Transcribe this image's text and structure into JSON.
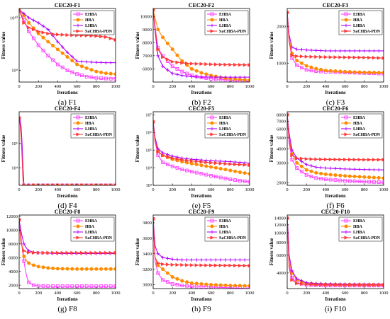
{
  "figure": {
    "y_label": "Fitness value",
    "x_label": "Iterations"
  },
  "legend_labels": [
    "EHBA",
    "HBA",
    "LHBA",
    "SaCHBA-PDN"
  ],
  "series_colors": [
    "#ff3dff",
    "#ff8c00",
    "#b000ff",
    "#ff3b3b"
  ],
  "chart_data": [
    {
      "type": "line",
      "title": "CEC20-F1",
      "caption": "(a) F1",
      "xlim": [
        0,
        1000
      ],
      "x_ticks": [
        0,
        200,
        400,
        600,
        800,
        1000
      ],
      "ylim": [
        600000000,
        15000000000
      ],
      "yscale": "log",
      "y_ticks": [
        1000000000,
        10000000000
      ],
      "y_tick_labels": [
        "10⁹",
        "10¹⁰"
      ],
      "legend": "top-right",
      "x": [
        0,
        50,
        100,
        200,
        300,
        400,
        500,
        600,
        700,
        800,
        900,
        1000
      ],
      "series": [
        {
          "name": "EHBA",
          "values": [
            14000000000,
            9000000000,
            5500000000,
            3000000000,
            1900000000,
            1300000000,
            1000000000,
            850000000,
            760000000,
            720000000,
            700000000,
            690000000
          ]
        },
        {
          "name": "HBA",
          "values": [
            14000000000,
            11000000000,
            8000000000,
            5000000000,
            3500000000,
            2500000000,
            1800000000,
            1300000000,
            1100000000,
            950000000,
            880000000,
            850000000
          ]
        },
        {
          "name": "LHBA",
          "values": [
            14000000000,
            12000000000,
            10000000000,
            8000000000,
            6000000000,
            3500000000,
            2200000000,
            1500000000,
            1450000000,
            1420000000,
            1400000000,
            1400000000
          ]
        },
        {
          "name": "SaCHBA-PDN",
          "values": [
            14000000000,
            8000000000,
            6500000000,
            5500000000,
            5000000000,
            4800000000,
            4700000000,
            4650000000,
            4600000000,
            4500000000,
            4300000000,
            3800000000
          ]
        }
      ]
    },
    {
      "type": "line",
      "title": "CEC20-F2",
      "caption": "(b) F2",
      "xlim": [
        0,
        1000
      ],
      "x_ticks": [
        0,
        200,
        400,
        600,
        800,
        1000
      ],
      "ylim": [
        5000,
        10600
      ],
      "yscale": "linear",
      "y_ticks": [
        6000,
        7000,
        8000,
        9000,
        10000
      ],
      "y_tick_labels": [
        "6000",
        "7000",
        "8000",
        "9000",
        "10000"
      ],
      "legend": "top-right",
      "x": [
        0,
        50,
        100,
        200,
        300,
        400,
        500,
        600,
        700,
        800,
        900,
        1000
      ],
      "series": [
        {
          "name": "EHBA",
          "values": [
            10500,
            7600,
            7000,
            6200,
            5800,
            5500,
            5350,
            5250,
            5200,
            5150,
            5100,
            5050
          ]
        },
        {
          "name": "HBA",
          "values": [
            10500,
            9000,
            8400,
            7500,
            6600,
            6000,
            5700,
            5500,
            5350,
            5250,
            5200,
            5150
          ]
        },
        {
          "name": "LHBA",
          "values": [
            10500,
            7000,
            6200,
            5650,
            5500,
            5400,
            5380,
            5380,
            5370,
            5370,
            5370,
            5370
          ]
        },
        {
          "name": "SaCHBA-PDN",
          "values": [
            10500,
            7500,
            6900,
            6550,
            6450,
            6400,
            6380,
            6350,
            6330,
            6320,
            6310,
            6300
          ]
        }
      ]
    },
    {
      "type": "line",
      "title": "CEC20-F3",
      "caption": "(c) F3",
      "xlim": [
        0,
        1000
      ],
      "x_ticks": [
        0,
        200,
        400,
        600,
        800,
        1000
      ],
      "ylim": [
        700,
        2800
      ],
      "yscale": "log",
      "y_ticks": [
        1000,
        2000
      ],
      "y_tick_labels": [
        "1000",
        "2000"
      ],
      "legend": "top-right",
      "x": [
        0,
        20,
        50,
        100,
        200,
        300,
        400,
        600,
        800,
        1000
      ],
      "series": [
        {
          "name": "EHBA",
          "values": [
            2600,
            1500,
            1100,
            960,
            880,
            860,
            850,
            840,
            830,
            820
          ]
        },
        {
          "name": "HBA",
          "values": [
            2600,
            1600,
            1200,
            1050,
            950,
            900,
            870,
            850,
            840,
            835
          ]
        },
        {
          "name": "LHBA",
          "values": [
            2600,
            1700,
            1350,
            1300,
            1280,
            1270,
            1260,
            1260,
            1260,
            1260
          ]
        },
        {
          "name": "SaCHBA-PDN",
          "values": [
            2600,
            1500,
            1160,
            1140,
            1130,
            1125,
            1120,
            1115,
            1110,
            1100
          ]
        }
      ]
    },
    {
      "type": "line",
      "title": "CEC20-F4",
      "caption": "(d) F4",
      "xlim": [
        0,
        1000
      ],
      "x_ticks": [
        0,
        200,
        400,
        600,
        800,
        1000
      ],
      "ylim": [
        1901,
        2000000
      ],
      "yscale": "log",
      "y_ticks": [
        10000,
        100000
      ],
      "y_tick_labels": [
        "10⁴",
        "10⁵"
      ],
      "legend": "top-right",
      "x": [
        0,
        10,
        20,
        30,
        40,
        50,
        100,
        200,
        400,
        600,
        800,
        1000
      ],
      "series": [
        {
          "name": "EHBA",
          "values": [
            1100000,
            700000,
            300000,
            50000,
            5000,
            1906,
            1906,
            1906,
            1906,
            1906,
            1906,
            1906
          ]
        },
        {
          "name": "HBA",
          "values": [
            1100000,
            800000,
            400000,
            80000,
            8000,
            1906,
            1906,
            1906,
            1906,
            1906,
            1906,
            1906
          ]
        },
        {
          "name": "LHBA",
          "values": [
            1100000,
            900000,
            500000,
            100000,
            10000,
            1906,
            1906,
            1906,
            1906,
            1906,
            1906,
            1906
          ]
        },
        {
          "name": "SaCHBA-PDN",
          "values": [
            1100000,
            600000,
            200000,
            30000,
            3000,
            1906,
            1906,
            1906,
            1906,
            1906,
            1906,
            1906
          ]
        }
      ]
    },
    {
      "type": "line",
      "title": "CEC20-F5",
      "caption": "(e) F5",
      "xlim": [
        0,
        1000
      ],
      "x_ticks": [
        0,
        200,
        400,
        600,
        800,
        1000
      ],
      "ylim": [
        1000,
        15000000
      ],
      "yscale": "log",
      "y_ticks": [
        1000,
        10000,
        100000,
        1000000,
        10000000
      ],
      "y_tick_labels": [
        "10³",
        "10⁴",
        "10⁵",
        "10⁶",
        "10⁷"
      ],
      "legend": "top-right",
      "x": [
        0,
        20,
        50,
        100,
        200,
        300,
        400,
        600,
        800,
        900,
        1000
      ],
      "series": [
        {
          "name": "EHBA",
          "values": [
            4000000,
            300000,
            50000,
            20000,
            12000,
            8000,
            6000,
            3500,
            2200,
            1800,
            1600
          ]
        },
        {
          "name": "HBA",
          "values": [
            4000000,
            400000,
            90000,
            50000,
            30000,
            22000,
            17000,
            11000,
            7000,
            5500,
            4500
          ]
        },
        {
          "name": "LHBA",
          "values": [
            4000000,
            500000,
            120000,
            70000,
            45000,
            35000,
            30000,
            25000,
            22000,
            20000,
            18000
          ]
        },
        {
          "name": "SaCHBA-PDN",
          "values": [
            4000000,
            300000,
            80000,
            50000,
            35000,
            28000,
            24000,
            19000,
            16000,
            15000,
            14000
          ]
        }
      ]
    },
    {
      "type": "line",
      "title": "CEC20-F6",
      "caption": "(f) F6",
      "xlim": [
        0,
        1000
      ],
      "x_ticks": [
        0,
        200,
        400,
        600,
        800,
        1000
      ],
      "ylim": [
        1900,
        8500
      ],
      "yscale": "log",
      "y_ticks": [
        2000,
        3000,
        4000,
        5000,
        6000,
        7000,
        8000
      ],
      "y_tick_labels": [
        "2000",
        "3000",
        "4000",
        "5000",
        "6000",
        "7000",
        "8000"
      ],
      "legend": "top-right",
      "x": [
        0,
        20,
        50,
        100,
        200,
        300,
        400,
        600,
        800,
        1000
      ],
      "series": [
        {
          "name": "EHBA",
          "values": [
            8000,
            4500,
            3200,
            2700,
            2350,
            2200,
            2150,
            2080,
            2050,
            2020
          ]
        },
        {
          "name": "HBA",
          "values": [
            8000,
            5000,
            3600,
            3000,
            2600,
            2450,
            2380,
            2300,
            2250,
            2200
          ]
        },
        {
          "name": "LHBA",
          "values": [
            8000,
            5500,
            3900,
            3300,
            2900,
            2750,
            2700,
            2650,
            2620,
            2600
          ]
        },
        {
          "name": "SaCHBA-PDN",
          "values": [
            8000,
            4800,
            3500,
            3300,
            3250,
            3230,
            3220,
            3210,
            3200,
            3200
          ]
        }
      ]
    },
    {
      "type": "line",
      "title": "CEC20-F8",
      "caption": "(g) F8",
      "xlim": [
        0,
        1000
      ],
      "x_ticks": [
        0,
        200,
        400,
        600,
        800,
        1000
      ],
      "ylim": [
        1500,
        12200
      ],
      "yscale": "linear",
      "y_ticks": [
        2000,
        4000,
        6000,
        8000,
        10000,
        12000
      ],
      "y_tick_labels": [
        "2000",
        "4000",
        "6000",
        "8000",
        "10000",
        "12000"
      ],
      "legend": "top-right",
      "x": [
        0,
        20,
        50,
        80,
        100,
        150,
        200,
        300,
        400,
        600,
        800,
        1000
      ],
      "series": [
        {
          "name": "EHBA",
          "values": [
            11500,
            9000,
            5500,
            3200,
            2400,
            2000,
            1900,
            1850,
            1850,
            1850,
            1850,
            1850
          ]
        },
        {
          "name": "HBA",
          "values": [
            11500,
            8500,
            6200,
            5500,
            5200,
            4900,
            4700,
            4500,
            4400,
            4350,
            4350,
            4350
          ]
        },
        {
          "name": "LHBA",
          "values": [
            11500,
            9800,
            8000,
            7300,
            7000,
            6800,
            6700,
            6650,
            6600,
            6600,
            6600,
            6600
          ]
        },
        {
          "name": "SaCHBA-PDN",
          "values": [
            11500,
            8000,
            7000,
            6800,
            6750,
            6700,
            6700,
            6700,
            6700,
            6700,
            6700,
            6700
          ]
        }
      ]
    },
    {
      "type": "line",
      "title": "CEC20-F9",
      "caption": "(h) F9",
      "xlim": [
        0,
        1000
      ],
      "x_ticks": [
        0,
        200,
        400,
        600,
        800,
        1000
      ],
      "ylim": [
        2950,
        3900
      ],
      "yscale": "linear",
      "y_ticks": [
        3000,
        3200,
        3400,
        3600,
        3800
      ],
      "y_tick_labels": [
        "3000",
        "3200",
        "3400",
        "3600",
        "3800"
      ],
      "legend": "top-right",
      "x": [
        0,
        20,
        50,
        100,
        200,
        300,
        400,
        600,
        800,
        1000
      ],
      "series": [
        {
          "name": "EHBA",
          "values": [
            3850,
            3300,
            3150,
            3060,
            3010,
            2990,
            2980,
            2970,
            2960,
            2950
          ]
        },
        {
          "name": "HBA",
          "values": [
            3850,
            3350,
            3250,
            3200,
            3100,
            3050,
            3020,
            3000,
            2990,
            2985
          ]
        },
        {
          "name": "LHBA",
          "values": [
            3850,
            3500,
            3400,
            3350,
            3330,
            3320,
            3320,
            3320,
            3320,
            3320
          ]
        },
        {
          "name": "SaCHBA-PDN",
          "values": [
            3850,
            3350,
            3280,
            3265,
            3258,
            3255,
            3253,
            3250,
            3248,
            3245
          ]
        }
      ]
    },
    {
      "type": "line",
      "title": "CEC20-F10",
      "caption": "(i) F10",
      "xlim": [
        0,
        1000
      ],
      "x_ticks": [
        0,
        200,
        400,
        600,
        800,
        1000
      ],
      "ylim": [
        2800,
        15000
      ],
      "yscale": "log",
      "y_ticks": [
        4000,
        6000,
        8000,
        10000,
        12000,
        14000
      ],
      "y_tick_labels": [
        "4000",
        "6000",
        "8000",
        "10000",
        "12000",
        "14000"
      ],
      "legend": "top-right",
      "x": [
        0,
        10,
        20,
        50,
        100,
        200,
        300,
        400,
        600,
        800,
        1000
      ],
      "series": [
        {
          "name": "EHBA",
          "values": [
            14000,
            9000,
            5000,
            3600,
            3200,
            3050,
            3020,
            3000,
            3000,
            3000,
            3000
          ]
        },
        {
          "name": "HBA",
          "values": [
            14000,
            9500,
            5500,
            4000,
            3400,
            3150,
            3100,
            3080,
            3060,
            3050,
            3050
          ]
        },
        {
          "name": "LHBA",
          "values": [
            14000,
            10000,
            6000,
            4200,
            3500,
            3200,
            3150,
            3120,
            3100,
            3090,
            3080
          ]
        },
        {
          "name": "SaCHBA-PDN",
          "values": [
            14000,
            8000,
            4500,
            3400,
            3150,
            3080,
            3060,
            3050,
            3050,
            3050,
            3050
          ]
        }
      ]
    }
  ]
}
